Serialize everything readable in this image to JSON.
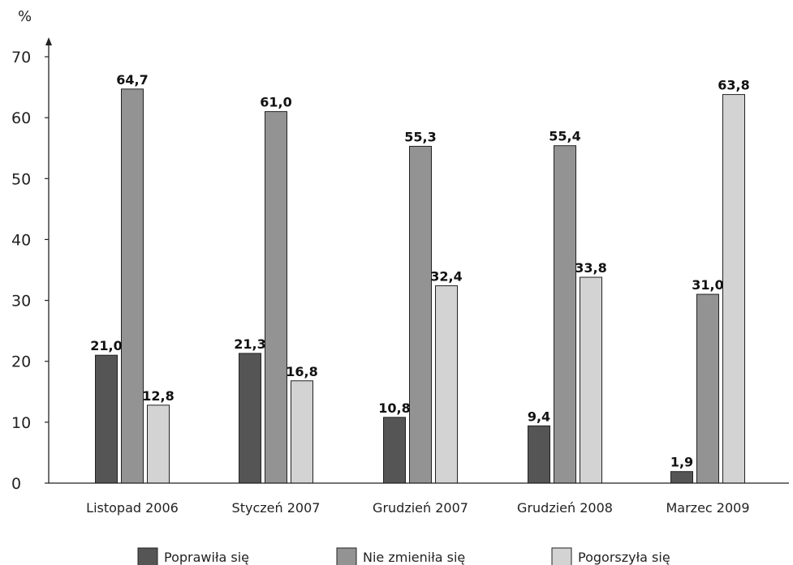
{
  "chart_data": {
    "type": "bar",
    "unit_label": "%",
    "categories": [
      "Listopad 2006",
      "Styczeń 2007",
      "Grudzień 2007",
      "Grudzień 2008",
      "Marzec 2009"
    ],
    "series": [
      {
        "name": "Poprawiła się",
        "color": "#555555",
        "values": [
          21.0,
          21.3,
          10.8,
          9.4,
          1.9
        ],
        "labels": [
          "21,0",
          "21,3",
          "10,8",
          "9,4",
          "1,9"
        ]
      },
      {
        "name": "Nie zmieniła się",
        "color": "#939393",
        "values": [
          64.7,
          61.0,
          55.3,
          55.4,
          31.0
        ],
        "labels": [
          "64,7",
          "61,0",
          "55,3",
          "55,4",
          "31,0"
        ]
      },
      {
        "name": "Pogorszyła się",
        "color": "#d3d3d3",
        "values": [
          12.8,
          16.8,
          32.4,
          33.8,
          63.8
        ],
        "labels": [
          "12,8",
          "16,8",
          "32,4",
          "33,8",
          "63,8"
        ]
      }
    ],
    "ylim": [
      0,
      70
    ],
    "yticks": [
      0,
      10,
      20,
      30,
      40,
      50,
      60,
      70
    ],
    "grid": false,
    "legend_position": "bottom"
  }
}
